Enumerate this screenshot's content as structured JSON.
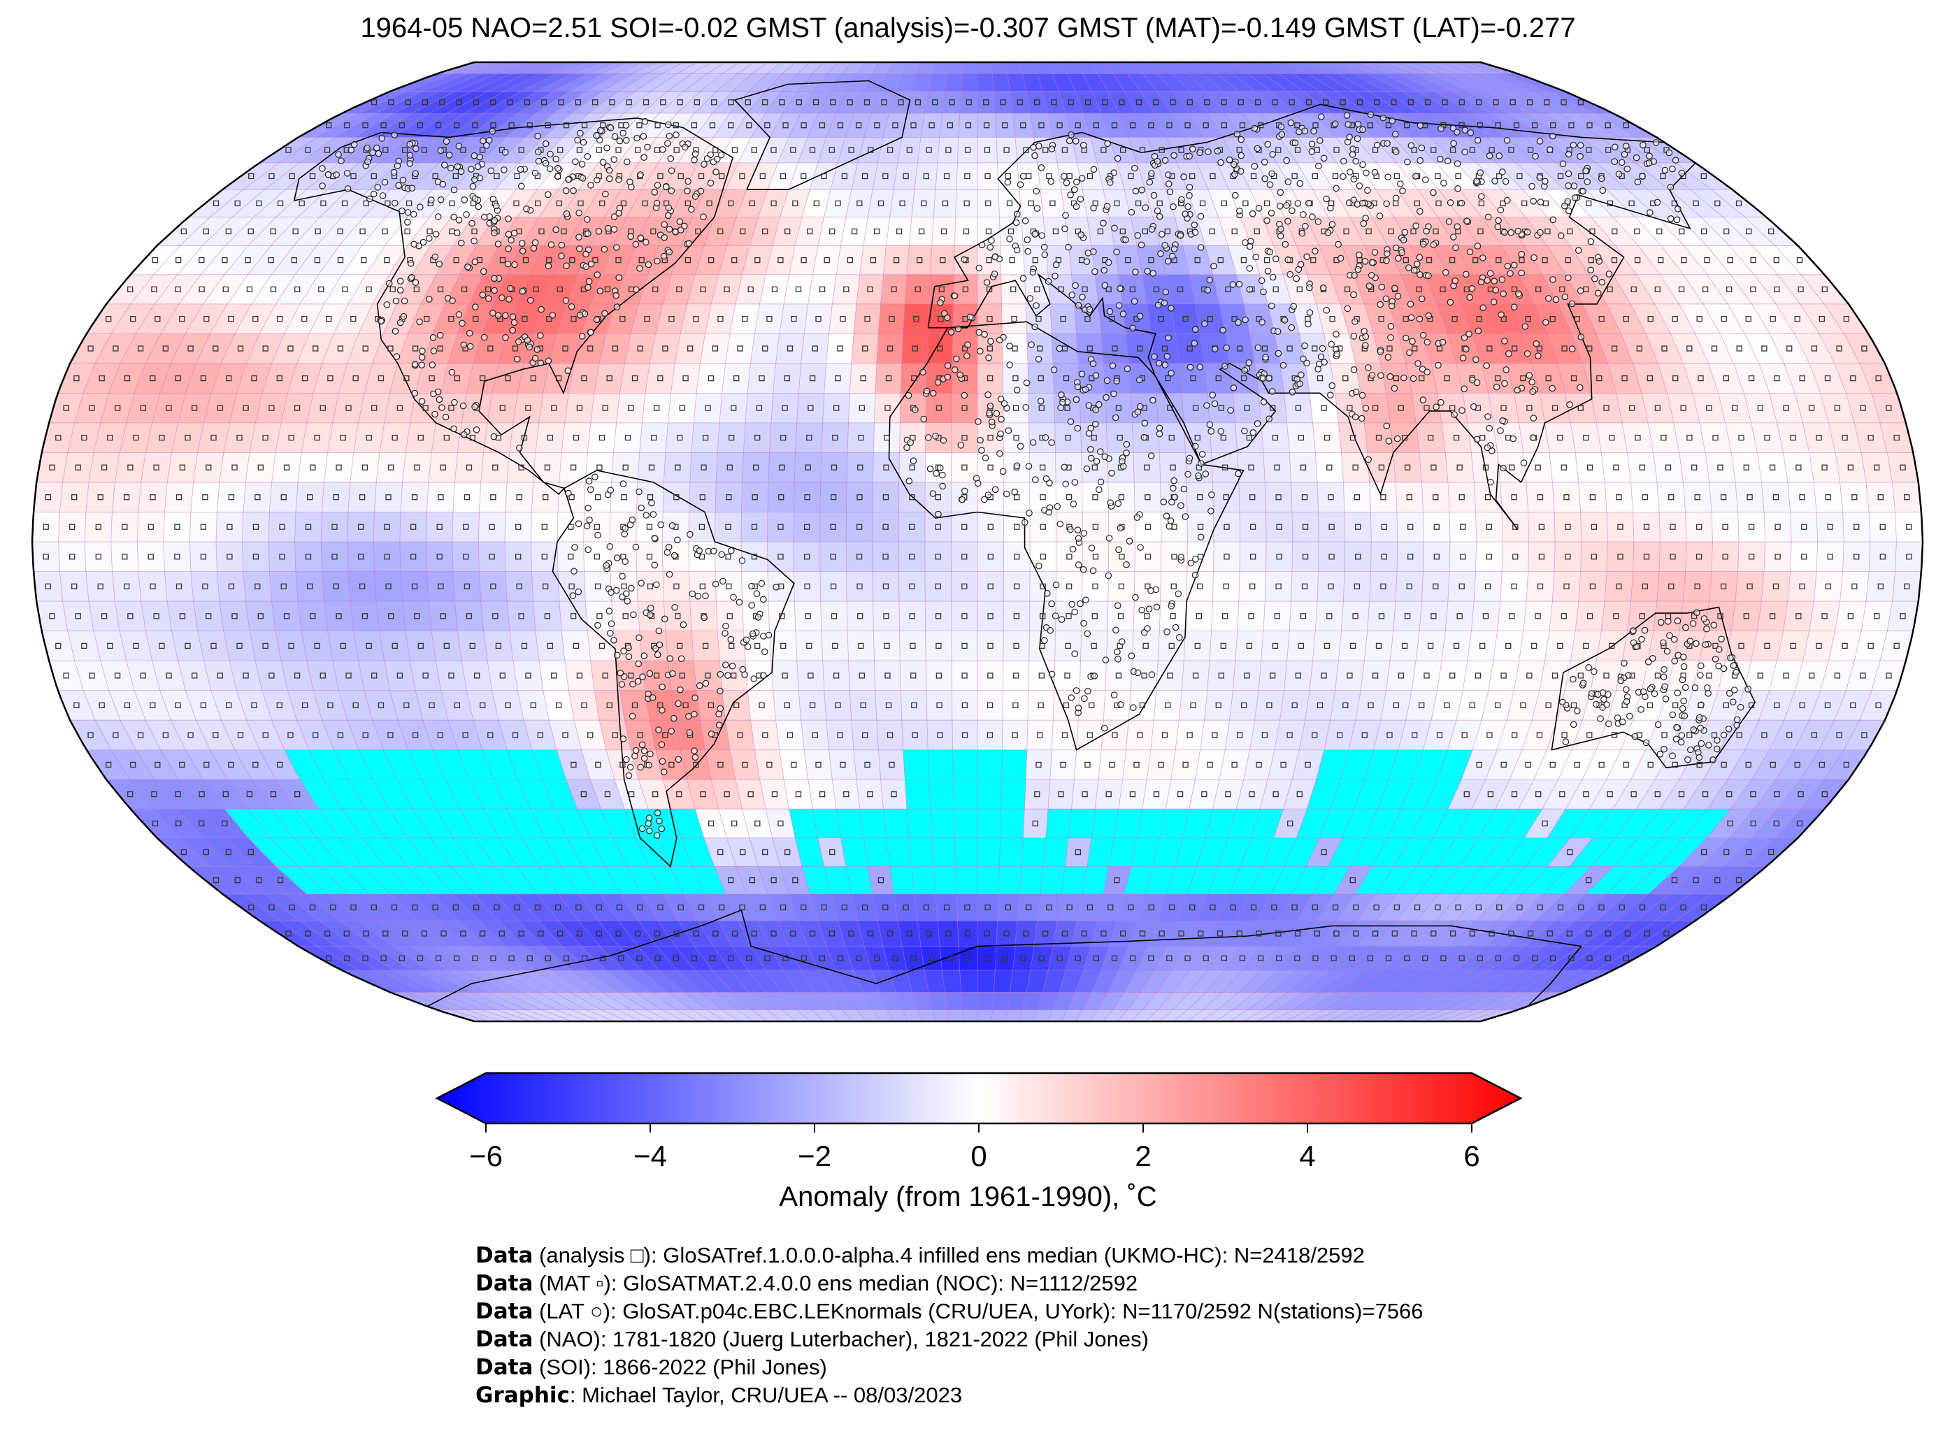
{
  "title": "1964-05 NAO=2.51 SOI=-0.02 GMST (analysis)=-0.307 GMST (MAT)=-0.149 GMST (LAT)=-0.277",
  "colorbar": {
    "ticks": [
      "−6",
      "−4",
      "−2",
      "0",
      "2",
      "4",
      "6"
    ],
    "range": [
      -6,
      6
    ],
    "label": "Anomaly (from 1961-1990), ˚C",
    "colors": {
      "cold": "#0000ff",
      "neutral": "#ffffff",
      "warm": "#ff0000"
    }
  },
  "map": {
    "projection": "Robinson",
    "missing_color": "#00ffff",
    "grid_color": "#c070c0"
  },
  "credits": [
    {
      "bold": "Data",
      "text": " (analysis □): GloSATref.1.0.0.0-alpha.4 infilled ens median (UKMO-HC): N=2418/2592"
    },
    {
      "bold": "Data",
      "text": " (MAT ▫): GloSATMAT.2.4.0.0 ens median (NOC): N=1112/2592"
    },
    {
      "bold": "Data",
      "text": " (LAT ○): GloSAT.p04c.EBC.LEKnormals (CRU/UEA, UYork): N=1170/2592 N(stations)=7566"
    },
    {
      "bold": "Data",
      "text": " (NAO): 1781-1820 (Juerg Luterbacher), 1821-2022 (Phil Jones)"
    },
    {
      "bold": "Data",
      "text": " (SOI): 1866-2022 (Phil Jones)"
    },
    {
      "bold": "Graphic",
      "text": ": Michael Taylor, CRU/UEA -- 08/03/2023"
    }
  ]
}
